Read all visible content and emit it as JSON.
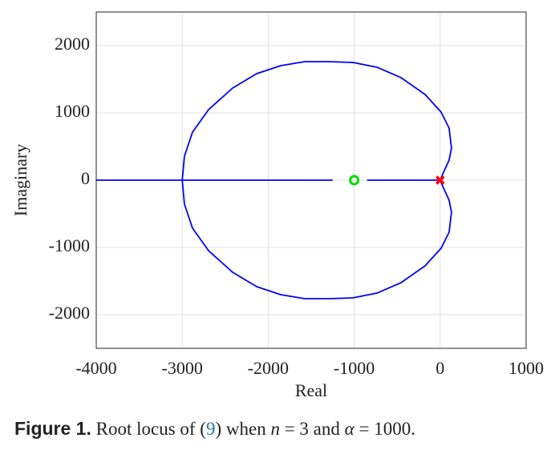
{
  "chart_data": {
    "type": "line",
    "xlabel": "Real",
    "ylabel": "Imaginary",
    "xlim": [
      -4000,
      1000
    ],
    "ylim": [
      -2500,
      2500
    ],
    "xticks": [
      -4000,
      -3000,
      -2000,
      -1000,
      0,
      1000
    ],
    "yticks": [
      -2000,
      -1000,
      0,
      1000,
      2000
    ],
    "grid": true,
    "series": [
      {
        "color": "#0000ff",
        "x": [
          0,
          40,
          104,
          132,
          104,
          11,
          -175,
          -455,
          -735,
          -1015,
          -1295,
          -1575,
          -1854,
          -2134,
          -2414,
          -2694,
          -2880,
          -2974,
          -3000
        ],
        "y": [
          0,
          119,
          298,
          476,
          774,
          1012,
          1274,
          1524,
          1679,
          1750,
          1762,
          1762,
          1702,
          1583,
          1369,
          1048,
          714,
          357,
          0
        ]
      },
      {
        "color": "#0000ff",
        "x": [
          0,
          40,
          104,
          132,
          104,
          11,
          -175,
          -455,
          -735,
          -1015,
          -1295,
          -1575,
          -1854,
          -2134,
          -2414,
          -2694,
          -2880,
          -2974,
          -3000
        ],
        "y": [
          0,
          -119,
          -298,
          -476,
          -774,
          -1012,
          -1274,
          -1524,
          -1679,
          -1750,
          -1762,
          -1762,
          -1702,
          -1583,
          -1369,
          -1048,
          -714,
          -357,
          0
        ]
      },
      {
        "color": "#0000ff",
        "x": [
          -4000,
          -1250
        ],
        "y": [
          0,
          0
        ]
      },
      {
        "color": "#0000ff",
        "x": [
          -850,
          0
        ],
        "y": [
          0,
          0
        ]
      },
      {
        "color": "#00dd00",
        "marker": "o",
        "x": [
          -1000
        ],
        "y": [
          0
        ]
      },
      {
        "color": "#ff0000",
        "marker": "x",
        "x": [
          0
        ],
        "y": [
          0
        ]
      }
    ]
  },
  "caption": {
    "label": "Figure 1.",
    "parts": [
      "Root locus of (",
      "9",
      ") when ",
      "n",
      " = 3 and ",
      "α",
      " = 1000."
    ]
  }
}
